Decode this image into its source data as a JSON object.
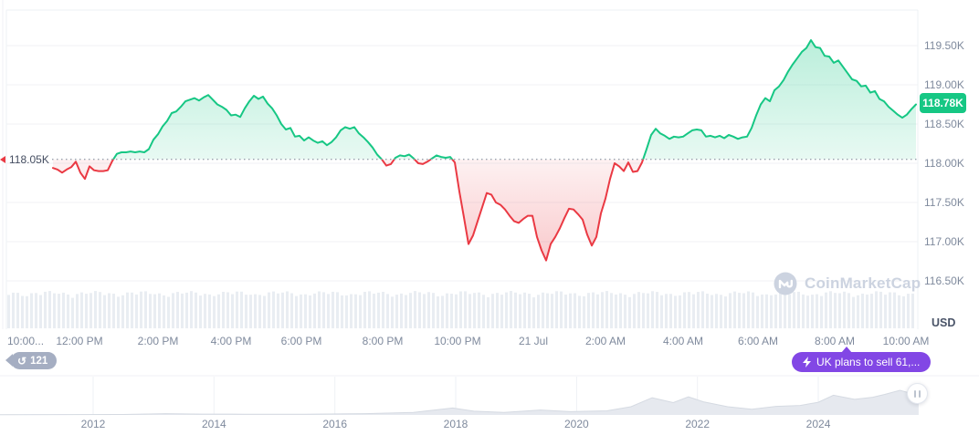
{
  "chart_data": {
    "type": "area",
    "baseline": {
      "label": "118.05K",
      "value": 118.05
    },
    "last_price": {
      "label": "118.78K",
      "value": 118.78
    },
    "y_axis": {
      "unit": "USD",
      "ticks": [
        {
          "label": "119.50K",
          "value": 119.5
        },
        {
          "label": "119.00K",
          "value": 119.0
        },
        {
          "label": "118.50K",
          "value": 118.5
        },
        {
          "label": "118.00K",
          "value": 118.0
        },
        {
          "label": "117.50K",
          "value": 117.5
        },
        {
          "label": "117.00K",
          "value": 117.0
        },
        {
          "label": "116.50K",
          "value": 116.5
        }
      ]
    },
    "x_axis": {
      "ticks": [
        "10:00...",
        "12:00 PM",
        "2:00 PM",
        "4:00 PM",
        "6:00 PM",
        "8:00 PM",
        "10:00 PM",
        "21 Jul",
        "2:00 AM",
        "4:00 AM",
        "6:00 AM",
        "8:00 AM",
        "10:00 AM"
      ]
    },
    "colors": {
      "up": "#16c784",
      "down": "#ea3943",
      "grid": "#f0f2f5",
      "volume": "#e9edf2"
    },
    "series": [
      {
        "name": "price",
        "unit": "USD (thousands)",
        "sampling": "uniform, 20 Jul ~11:20 AM to 21 Jul ~10:20 AM",
        "values": [
          117.94,
          117.92,
          117.88,
          117.92,
          117.95,
          118.02,
          117.88,
          117.8,
          117.96,
          117.91,
          117.9,
          117.9,
          117.91,
          118.03,
          118.12,
          118.14,
          118.14,
          118.15,
          118.14,
          118.15,
          118.14,
          118.18,
          118.3,
          118.37,
          118.47,
          118.54,
          118.64,
          118.66,
          118.72,
          118.79,
          118.81,
          118.83,
          118.8,
          118.84,
          118.87,
          118.81,
          118.75,
          118.72,
          118.68,
          118.61,
          118.62,
          118.59,
          118.7,
          118.79,
          118.86,
          118.82,
          118.85,
          118.76,
          118.7,
          118.61,
          118.5,
          118.43,
          118.45,
          118.34,
          118.35,
          118.29,
          118.33,
          118.29,
          118.26,
          118.28,
          118.23,
          118.27,
          118.33,
          118.42,
          118.46,
          118.44,
          118.46,
          118.38,
          118.33,
          118.27,
          118.2,
          118.11,
          118.05,
          117.97,
          117.99,
          118.07,
          118.1,
          118.09,
          118.11,
          118.06,
          118.0,
          117.99,
          118.02,
          118.06,
          118.1,
          118.08,
          118.07,
          118.08,
          118.01,
          117.64,
          117.31,
          116.97,
          117.08,
          117.26,
          117.44,
          117.62,
          117.6,
          117.5,
          117.47,
          117.41,
          117.33,
          117.26,
          117.24,
          117.29,
          117.33,
          117.33,
          117.06,
          116.89,
          116.76,
          116.97,
          117.06,
          117.17,
          117.3,
          117.42,
          117.41,
          117.35,
          117.28,
          117.09,
          116.95,
          117.06,
          117.36,
          117.55,
          117.8,
          118.0,
          117.96,
          117.9,
          118.01,
          117.89,
          117.9,
          118.01,
          118.18,
          118.36,
          118.44,
          118.38,
          118.35,
          118.31,
          118.34,
          118.33,
          118.34,
          118.38,
          118.42,
          118.43,
          118.42,
          118.34,
          118.35,
          118.33,
          118.35,
          118.32,
          118.36,
          118.34,
          118.31,
          118.33,
          118.34,
          118.45,
          118.61,
          118.75,
          118.83,
          118.79,
          118.93,
          118.98,
          119.06,
          119.17,
          119.26,
          119.34,
          119.42,
          119.47,
          119.57,
          119.48,
          119.47,
          119.37,
          119.36,
          119.28,
          119.31,
          119.23,
          119.15,
          119.07,
          119.05,
          118.98,
          118.99,
          118.9,
          118.92,
          118.82,
          118.79,
          118.72,
          118.67,
          118.62,
          118.58,
          118.62,
          118.69,
          118.75
        ]
      }
    ]
  },
  "mini_chart": {
    "type": "area",
    "x_ticks": [
      "2012",
      "2014",
      "2016",
      "2018",
      "2020",
      "2022",
      "2024"
    ],
    "points": [
      [
        2010.4,
        0.005
      ],
      [
        2011.5,
        0.008
      ],
      [
        2012.5,
        0.012
      ],
      [
        2013.2,
        0.03
      ],
      [
        2013.8,
        0.02
      ],
      [
        2014.5,
        0.018
      ],
      [
        2015.5,
        0.015
      ],
      [
        2016.5,
        0.03
      ],
      [
        2017.3,
        0.06
      ],
      [
        2017.95,
        0.17
      ],
      [
        2018.3,
        0.09
      ],
      [
        2018.8,
        0.06
      ],
      [
        2019.4,
        0.12
      ],
      [
        2019.9,
        0.08
      ],
      [
        2020.5,
        0.1
      ],
      [
        2020.9,
        0.2
      ],
      [
        2021.25,
        0.42
      ],
      [
        2021.6,
        0.3
      ],
      [
        2021.85,
        0.44
      ],
      [
        2022.1,
        0.32
      ],
      [
        2022.5,
        0.2
      ],
      [
        2022.9,
        0.14
      ],
      [
        2023.3,
        0.21
      ],
      [
        2023.7,
        0.23
      ],
      [
        2024.0,
        0.31
      ],
      [
        2024.25,
        0.48
      ],
      [
        2024.6,
        0.38
      ],
      [
        2024.9,
        0.43
      ],
      [
        2025.1,
        0.5
      ],
      [
        2025.35,
        0.6
      ],
      [
        2025.55,
        0.52
      ],
      [
        2025.66,
        0.55
      ]
    ]
  },
  "badges": {
    "history": {
      "count": "121",
      "icon": "history-clock",
      "glyph": "↺",
      "color": "#a5aec2"
    },
    "news": {
      "label": "UK plans to sell 61,...",
      "icon": "lightning-bolt",
      "color": "#8247e5"
    }
  },
  "watermark": {
    "text": "CoinMarketCap"
  }
}
